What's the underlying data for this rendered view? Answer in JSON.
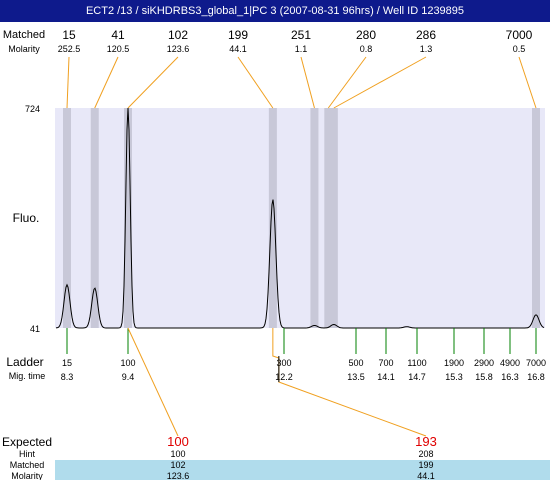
{
  "window": {
    "title": "ECT2 /13 / siKHDRBS3_global_1|PC 3 (2007-08-31 96hrs) / Well ID 1239895"
  },
  "colors": {
    "title_bar": "#0e1a8c",
    "plot_bg": "#e8e8f8",
    "band": "#c8c8d8",
    "trace": "#000000",
    "leader": "#f0a020",
    "ladder_tick": "#008000",
    "expected_text": "#e00000",
    "table_highlight": "#b0dcec"
  },
  "chart_data": {
    "type": "line",
    "ylabel": "Fluo.",
    "y_axis": {
      "ticks": [
        "724",
        "41"
      ],
      "ylim": [
        41,
        724
      ]
    },
    "peaks": {
      "header_row_labels": [
        "Matched",
        "Molarity"
      ],
      "sizes": [
        "15",
        "41",
        "102",
        "199",
        "251",
        "280",
        "286",
        "7000"
      ],
      "molarity": [
        "252.5",
        "120.5",
        "123.6",
        "44.1",
        "1.1",
        "0.8",
        "1.3",
        "0.5"
      ],
      "times": [
        8.3,
        8.8,
        9.4,
        12.0,
        12.75,
        13.0,
        13.1,
        16.8
      ]
    },
    "trace_peaks": [
      {
        "time": 8.3,
        "height": 175
      },
      {
        "time": 8.8,
        "height": 165
      },
      {
        "time": 9.4,
        "height": 724
      },
      {
        "time": 12.0,
        "height": 440
      },
      {
        "time": 12.75,
        "height": 49
      },
      {
        "time": 13.1,
        "height": 52
      },
      {
        "time": 14.5,
        "height": 45
      },
      {
        "time": 16.8,
        "height": 82
      }
    ],
    "x_range": [
      7.95,
      17.0
    ],
    "ladder": {
      "label": "Ladder",
      "time_label": "Mig. time",
      "sizes": [
        "15",
        "100",
        "300",
        "500",
        "700",
        "1100",
        "1900",
        "2900",
        "4900",
        "7000"
      ],
      "times": [
        "8.3",
        "9.4",
        "12.2",
        "13.5",
        "14.1",
        "14.7",
        "15.3",
        "15.8",
        "16.3",
        "16.8"
      ]
    },
    "table": {
      "row_labels": [
        "Expected",
        "Hint",
        "Matched",
        "Molarity"
      ],
      "columns": [
        {
          "expected": "100",
          "hint": "100",
          "matched": "102",
          "molarity": "123.6"
        },
        {
          "expected": "193",
          "hint": "208",
          "matched": "199",
          "molarity": "44.1"
        }
      ]
    }
  }
}
